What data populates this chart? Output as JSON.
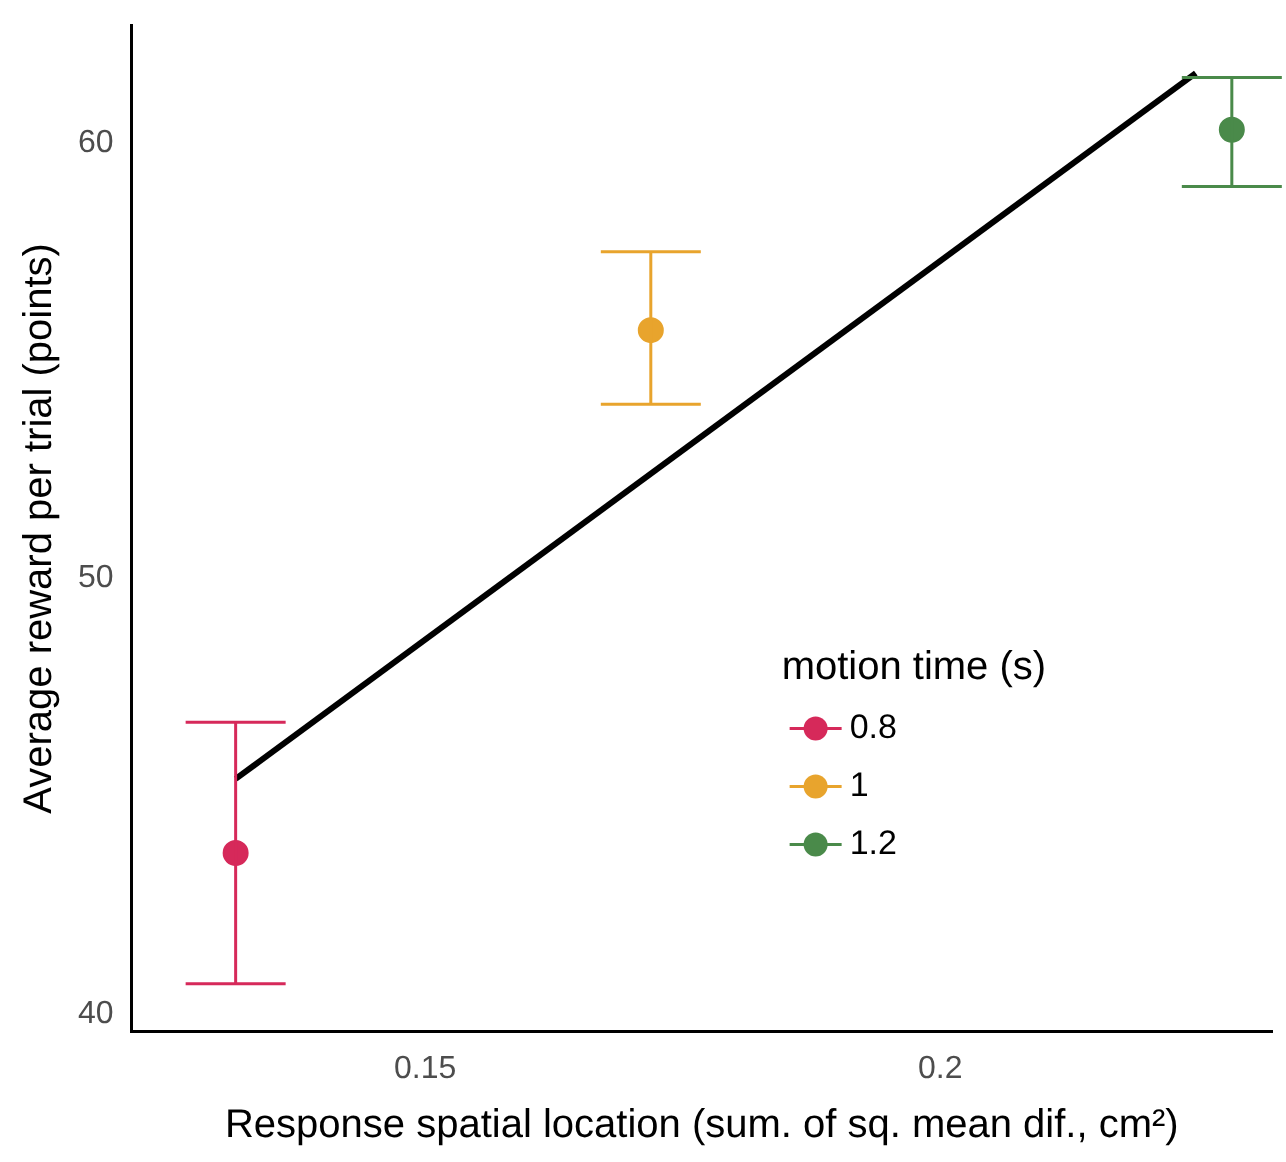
{
  "chart_data": {
    "type": "scatter",
    "xlabel": "Response spatial location (sum. of sq. mean dif., cm²)",
    "ylabel": "Average reward per trial (points)",
    "legend_title": "motion time (s)",
    "xlim": [
      0.1215,
      0.2322
    ],
    "xticks": [
      0.15,
      0.2
    ],
    "ylim": [
      39.6,
      62.7
    ],
    "yticks": [
      40,
      50,
      60
    ],
    "series": [
      {
        "type": "line",
        "color": "#000000",
        "x": [
          0.1316,
          0.2248
        ],
        "values": [
          45.4,
          61.6
        ],
        "marker": "none"
      },
      {
        "name": "0.8",
        "color": "#d6295a",
        "x": [
          0.1316
        ],
        "values": [
          43.7
        ],
        "errors": [
          [
            40.7,
            46.7
          ]
        ]
      },
      {
        "name": "1",
        "color": "#e8a42d",
        "x": [
          0.1719
        ],
        "values": [
          55.7
        ],
        "errors": [
          [
            54.0,
            57.5
          ]
        ]
      },
      {
        "name": "1.2",
        "color": "#4a8a4a",
        "x": [
          0.2283
        ],
        "values": [
          60.3
        ],
        "errors": [
          [
            59.0,
            61.5
          ]
        ]
      }
    ],
    "marker": "circle",
    "grid": false,
    "legend": "right"
  }
}
